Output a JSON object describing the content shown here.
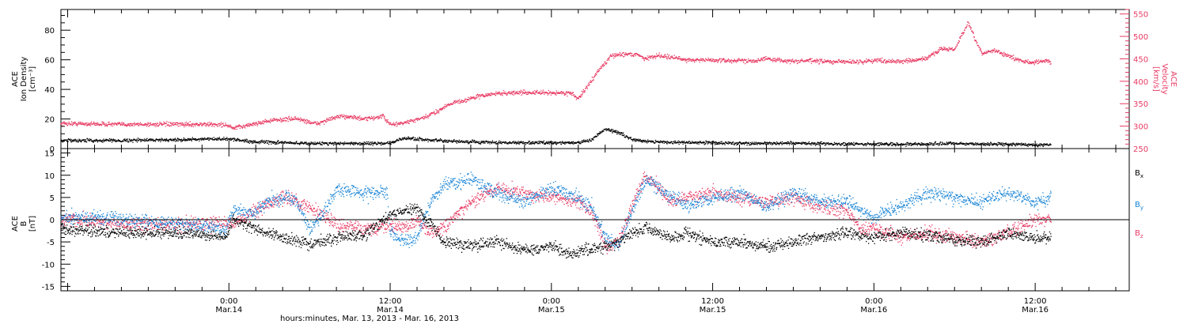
{
  "xaxis": {
    "label": "hours:minutes, Mar. 13, 2013 - Mar. 16, 2013",
    "ticks": [
      {
        "x": 24,
        "time": "0:00",
        "date": "Mar.14"
      },
      {
        "x": 36,
        "time": "12:00",
        "date": "Mar.14"
      },
      {
        "x": 48,
        "time": "0:00",
        "date": "Mar.15"
      },
      {
        "x": 60,
        "time": "12:00",
        "date": "Mar.15"
      },
      {
        "x": 72,
        "time": "0:00",
        "date": "Mar.16"
      },
      {
        "x": 84,
        "time": "12:00",
        "date": "Mar.16"
      }
    ]
  },
  "chart_data": [
    {
      "type": "scatter",
      "panel": "top",
      "xlim": [
        11.5,
        91
      ],
      "ylabel_left": [
        "ACE",
        "Ion Density",
        "[cm⁻³]"
      ],
      "ylim_left": [
        0,
        94
      ],
      "yticks_left": [
        "0",
        "20",
        "40",
        "60",
        "80"
      ],
      "ylabel_right": [
        "ACE",
        "Velocity",
        "[km/s]"
      ],
      "ylim_right": [
        250,
        560
      ],
      "yticks_right": [
        "250",
        "300",
        "350",
        "400",
        "450",
        "500",
        "550"
      ],
      "series": [
        {
          "axis": "right",
          "color": "#e83a63",
          "x": [
            11.5,
            16,
            20,
            22,
            23.8,
            24.3,
            27,
            29,
            30.5,
            32,
            33,
            34,
            35.5,
            36,
            37,
            38.5,
            39.5,
            40.5,
            41.5,
            42.5,
            44,
            46,
            48,
            49.5,
            50,
            51,
            51.5,
            52.5,
            53.5,
            54.5,
            55,
            56,
            57,
            58,
            60,
            61,
            63,
            64,
            66,
            67,
            69,
            70,
            71,
            72,
            74,
            75,
            76,
            77,
            78,
            79,
            80,
            81,
            82,
            83,
            84,
            85,
            85.2
          ],
          "values": [
            306,
            304,
            304,
            304,
            303,
            295,
            312,
            317,
            305,
            320,
            322,
            315,
            322,
            303,
            307,
            318,
            333,
            351,
            357,
            366,
            373,
            375,
            374,
            374,
            360,
            402,
            424,
            457,
            461,
            459,
            450,
            458,
            453,
            448,
            447,
            446,
            446,
            450,
            444,
            446,
            443,
            444,
            443,
            447,
            444,
            446,
            452,
            473,
            470,
            530,
            462,
            469,
            456,
            445,
            442,
            446,
            439
          ]
        },
        {
          "axis": "left",
          "color": "#000000",
          "x": [
            11.5,
            16,
            20,
            24,
            26,
            28,
            30,
            32,
            34,
            36,
            37,
            38,
            40,
            42,
            44,
            46,
            48,
            50,
            51,
            52,
            53,
            54,
            56,
            58,
            60,
            62,
            64,
            66,
            68,
            70,
            72,
            74,
            76,
            78,
            80,
            82,
            84,
            85.2
          ],
          "values": [
            5.5,
            5.5,
            6,
            6.5,
            4.5,
            4,
            3.5,
            3.5,
            3.5,
            3.5,
            7,
            6.5,
            5,
            4.5,
            4,
            4,
            4,
            4,
            6,
            13,
            11,
            6,
            4.5,
            4,
            4,
            3.5,
            3.5,
            3.5,
            3.5,
            3,
            3,
            3,
            3,
            3.5,
            3,
            3,
            2.5,
            2.5
          ]
        }
      ]
    },
    {
      "type": "scatter",
      "panel": "bottom",
      "xlim": [
        11.5,
        91
      ],
      "ylabel": [
        "ACE",
        "B",
        "[nT]"
      ],
      "ylim": [
        -16,
        16
      ],
      "yticks": [
        "-15",
        "-10",
        "-5",
        "0",
        "5",
        "10",
        "15"
      ],
      "zero_line": true,
      "legend": [
        {
          "name": "Bx",
          "color": "#000000"
        },
        {
          "name": "By",
          "color": "#1a85d6"
        },
        {
          "name": "Bz",
          "color": "#e83a63"
        }
      ],
      "series": [
        {
          "name": "Bx",
          "color": "#000000",
          "x": [
            11.5,
            14,
            17,
            20,
            22,
            23.8,
            24.3,
            26,
            28,
            30,
            32,
            34,
            35,
            36,
            37,
            38,
            39,
            40,
            42,
            44,
            46,
            48,
            49.5,
            50,
            51,
            52,
            53,
            54,
            55,
            56,
            57,
            58,
            60,
            62,
            64,
            66,
            68,
            70,
            72,
            74,
            76,
            78,
            80,
            82,
            84,
            85.2
          ],
          "values": [
            -2,
            -2.5,
            -3,
            -3,
            -3.5,
            -4,
            0,
            -2,
            -4,
            -5.5,
            -4,
            -3.5,
            -1,
            1,
            2,
            2.5,
            -1,
            -5,
            -6,
            -5,
            -7,
            -6,
            -8,
            -7,
            -6.5,
            -6,
            -5,
            -3,
            -2,
            -3,
            -4,
            -3,
            -5,
            -5,
            -6,
            -5,
            -4,
            -3,
            -4,
            -3,
            -3.5,
            -4.5,
            -5,
            -3,
            -4,
            -4
          ]
        },
        {
          "name": "By",
          "color": "#1a85d6",
          "x": [
            11.5,
            14,
            17,
            20,
            22,
            23.8,
            24.3,
            26,
            27,
            28,
            29,
            30,
            31,
            32,
            33,
            34,
            35,
            35.8,
            36,
            37,
            38,
            39,
            40,
            42,
            44,
            46,
            48,
            50,
            51,
            52,
            53,
            54,
            55,
            56,
            57,
            58,
            60,
            62,
            64,
            66,
            68,
            70,
            72,
            73,
            74,
            76,
            78,
            80,
            82,
            84,
            85.2
          ],
          "values": [
            0.5,
            0.5,
            0,
            -1,
            -1.5,
            -2,
            2,
            1.5,
            4.5,
            5,
            4.5,
            -2,
            1,
            6.5,
            6.5,
            6,
            6,
            6,
            -3,
            -5,
            -4,
            4,
            8,
            9,
            6,
            4,
            7,
            5,
            3,
            -4,
            -6,
            2,
            9,
            7,
            5,
            3,
            5,
            6,
            3,
            6,
            4,
            4,
            0,
            2,
            3,
            6,
            5,
            4,
            6,
            4,
            5
          ]
        },
        {
          "name": "Bz",
          "color": "#e83a63",
          "x": [
            11.5,
            14,
            17,
            20,
            22,
            23.8,
            24.3,
            26,
            28,
            30,
            32,
            34,
            35,
            36,
            37,
            38,
            39,
            40,
            42,
            44,
            46,
            48,
            50,
            51,
            52,
            53,
            54,
            55,
            56,
            57,
            58,
            60,
            62,
            64,
            66,
            68,
            70,
            71,
            72,
            74,
            76,
            78,
            80,
            82,
            84,
            85.2
          ],
          "values": [
            0,
            -0.5,
            -1,
            -1,
            -1,
            -0.5,
            -1,
            2,
            5,
            3,
            -1,
            -2,
            -2,
            -1,
            -2,
            0,
            -3,
            -2,
            4,
            7,
            6,
            5,
            4,
            2,
            -6,
            -5,
            3,
            10,
            7,
            4,
            5,
            6,
            5,
            4,
            5,
            3,
            2,
            -2,
            -2,
            -4,
            -3,
            -4,
            -5,
            -3,
            0,
            0
          ]
        }
      ]
    }
  ]
}
